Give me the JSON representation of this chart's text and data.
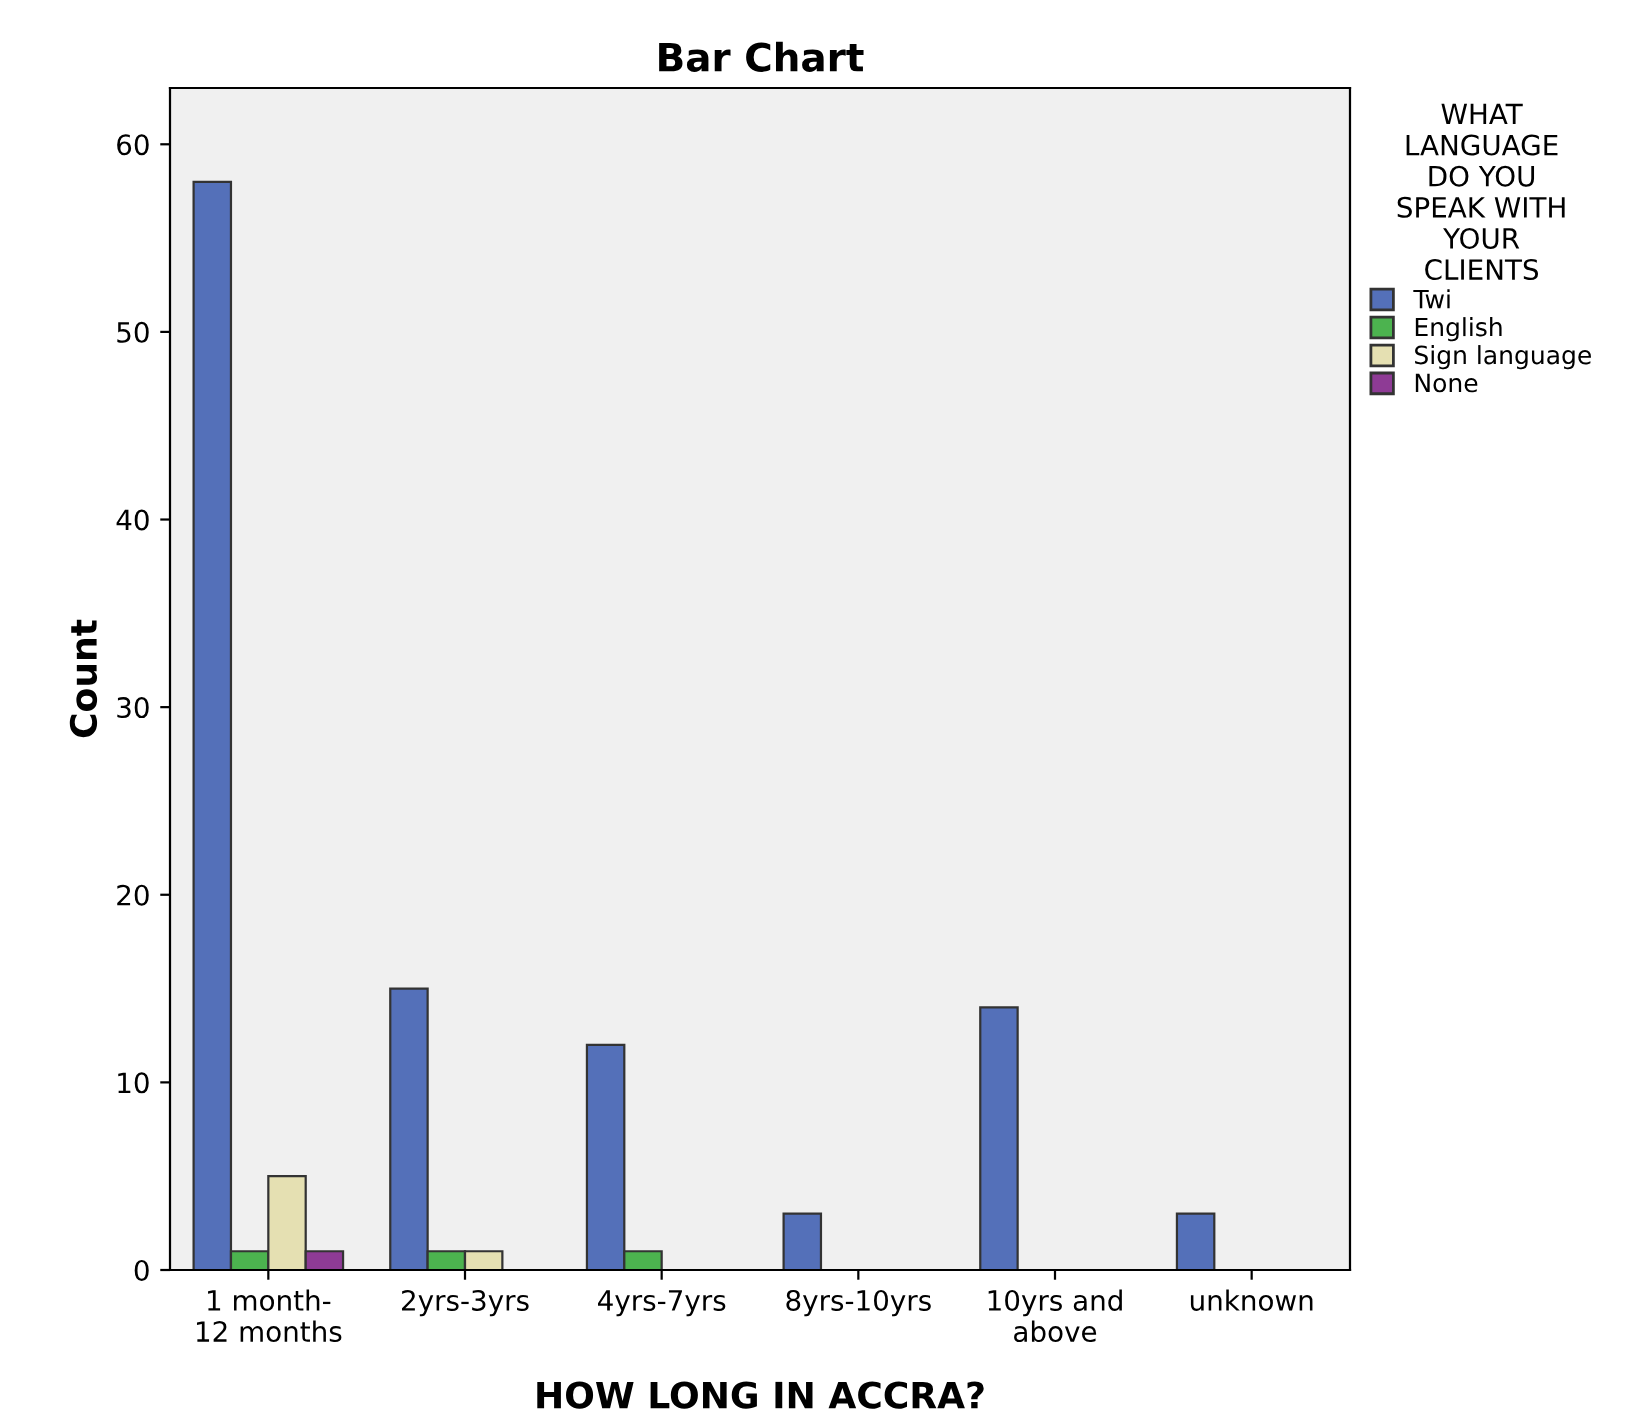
{
  "chart_data": {
    "type": "bar",
    "title": "Bar Chart",
    "xlabel": "HOW LONG IN ACCRA?",
    "ylabel": "Count",
    "legend_title": "WHAT\nLANGUAGE\nDO YOU\nSPEAK WITH\nYOUR\nCLIENTS",
    "categories": [
      "1 month-\n12 months",
      "2yrs-3yrs",
      "4yrs-7yrs",
      "8yrs-10yrs",
      "10yrs and\nabove",
      "unknown"
    ],
    "series": [
      {
        "name": "Twi",
        "color": "#5470b9",
        "values": [
          58,
          15,
          12,
          3,
          14,
          3
        ]
      },
      {
        "name": "English",
        "color": "#4cb34f",
        "values": [
          1,
          1,
          1,
          null,
          null,
          null
        ]
      },
      {
        "name": "Sign language",
        "color": "#e5e0b2",
        "values": [
          5,
          1,
          null,
          null,
          null,
          null
        ]
      },
      {
        "name": "None",
        "color": "#8e3b95",
        "values": [
          1,
          null,
          null,
          null,
          null,
          null
        ]
      }
    ],
    "ylim": [
      0,
      63
    ],
    "yticks": [
      0,
      10,
      20,
      30,
      40,
      50,
      60
    ],
    "grid": false,
    "legend": "right"
  }
}
